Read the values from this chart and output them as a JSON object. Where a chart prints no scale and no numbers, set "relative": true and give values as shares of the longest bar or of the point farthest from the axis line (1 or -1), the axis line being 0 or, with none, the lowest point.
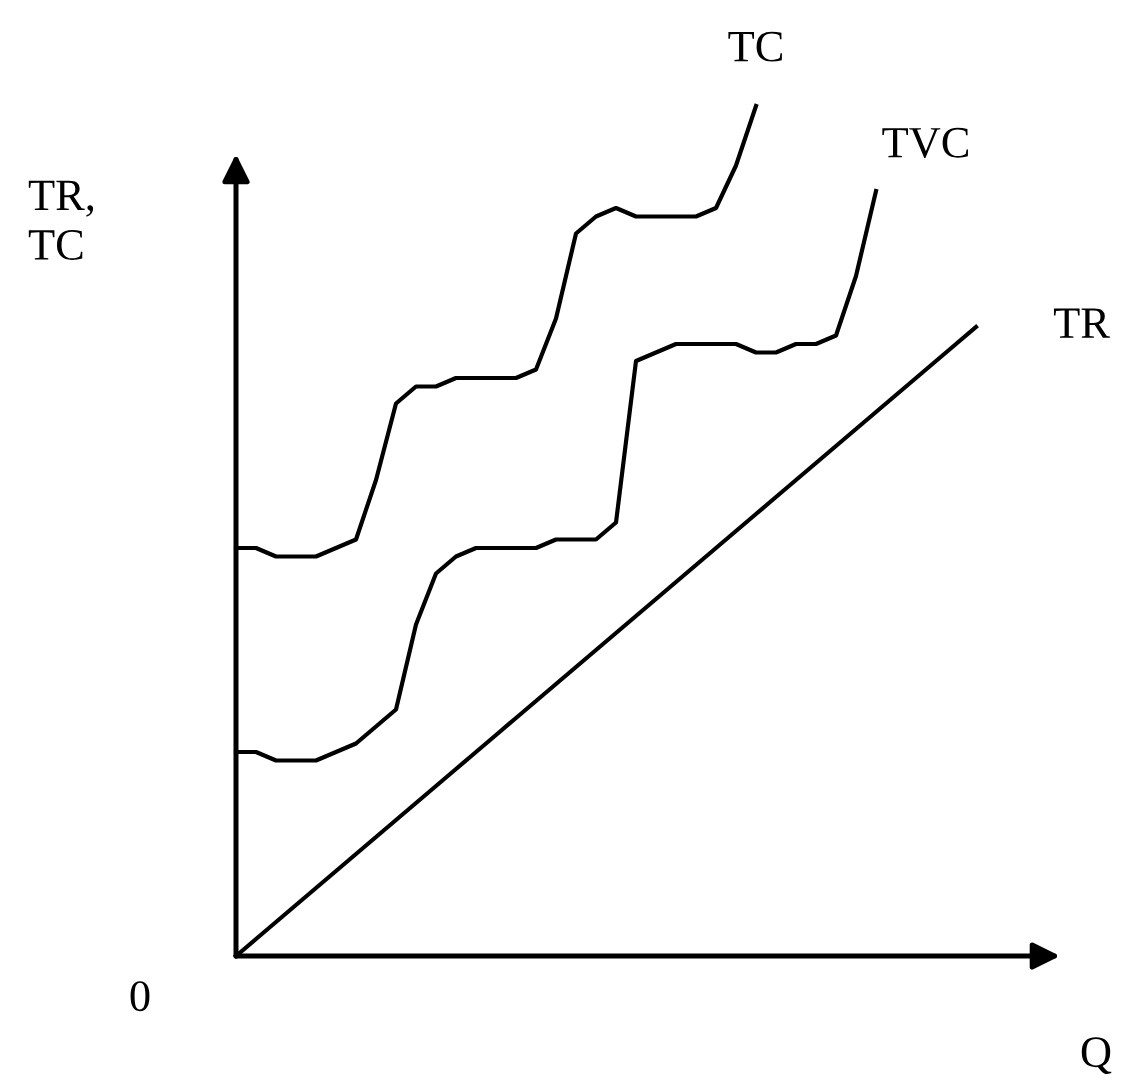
{
  "chart_data": {
    "type": "line",
    "relative": true,
    "xlabel": "Q",
    "ylabel": "TR,\nTC",
    "annotations": [
      "0"
    ],
    "categories": [
      null,
      null,
      null,
      null,
      null,
      null,
      null,
      null,
      null,
      null,
      null,
      null,
      null,
      null,
      null,
      null,
      null,
      null,
      null,
      null,
      null,
      null,
      null,
      null,
      null,
      null,
      null,
      null,
      null,
      null,
      null,
      null,
      null,
      null,
      null,
      null,
      null,
      null
    ],
    "series": [
      {
        "name": "TC",
        "color": "#000000",
        "values": [
          0.48,
          0.48,
          0.47,
          0.47,
          0.47,
          0.48,
          0.49,
          0.56,
          0.65,
          0.67,
          0.67,
          0.68,
          0.68,
          0.68,
          0.68,
          0.69,
          0.75,
          0.85,
          0.87,
          0.88,
          0.87,
          0.87,
          0.87,
          0.87,
          0.88,
          0.93,
          1.0,
          null,
          null,
          null,
          null,
          null,
          null,
          null,
          null,
          null,
          null,
          null
        ]
      },
      {
        "name": "TVC",
        "color": "#000000",
        "values": [
          0.24,
          0.24,
          0.23,
          0.23,
          0.23,
          0.24,
          0.25,
          0.27,
          0.29,
          0.39,
          0.45,
          0.47,
          0.48,
          0.48,
          0.48,
          0.48,
          0.49,
          0.49,
          0.49,
          0.51,
          0.7,
          0.71,
          0.72,
          0.72,
          0.72,
          0.72,
          0.71,
          0.71,
          0.72,
          0.72,
          0.73,
          0.8,
          0.9,
          null,
          null,
          null,
          null,
          null
        ]
      },
      {
        "name": "TR",
        "color": "#000000",
        "values": [
          0.0,
          0.02,
          0.04,
          0.06,
          0.08,
          0.1,
          0.12,
          0.14,
          0.16,
          0.18,
          0.2,
          0.22,
          0.24,
          0.26,
          0.28,
          0.3,
          0.32,
          0.34,
          0.36,
          0.38,
          0.4,
          0.42,
          0.44,
          0.46,
          0.48,
          0.5,
          0.52,
          0.54,
          0.56,
          0.58,
          0.6,
          0.62,
          0.64,
          0.66,
          0.68,
          0.7,
          0.72,
          0.74
        ]
      }
    ]
  }
}
